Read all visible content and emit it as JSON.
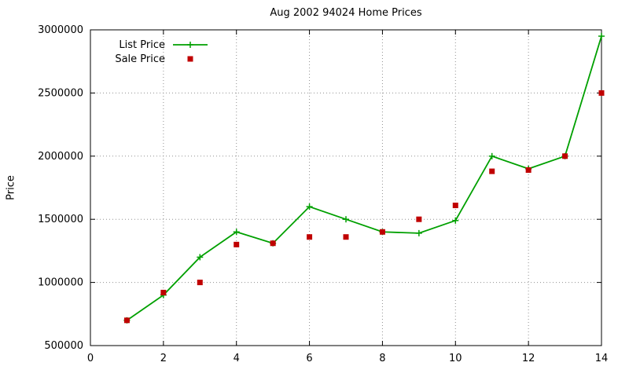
{
  "chart_data": {
    "type": "line",
    "title": "Aug 2002 94024 Home Prices",
    "xlabel": "",
    "ylabel": "Price",
    "xlim": [
      0,
      14
    ],
    "ylim": [
      500000,
      3000000
    ],
    "x_ticks": [
      0,
      2,
      4,
      6,
      8,
      10,
      12,
      14
    ],
    "y_ticks": [
      500000,
      1000000,
      1500000,
      2000000,
      2500000,
      3000000
    ],
    "grid": true,
    "legend_position": "top-left-inside",
    "x": [
      1,
      2,
      3,
      4,
      5,
      6,
      7,
      8,
      9,
      10,
      11,
      12,
      13,
      14
    ],
    "series": [
      {
        "name": "List Price",
        "style": "line-with-markers",
        "marker": "plus",
        "color": "#00a000",
        "values": [
          700000,
          900000,
          1200000,
          1400000,
          1310000,
          1600000,
          1500000,
          1400000,
          1390000,
          1490000,
          2000000,
          1900000,
          2000000,
          2950000
        ]
      },
      {
        "name": "Sale Price",
        "style": "points",
        "marker": "filled-square",
        "color": "#c00000",
        "values": [
          700000,
          920000,
          1000000,
          1300000,
          1310000,
          1360000,
          1360000,
          1400000,
          1500000,
          1610000,
          1880000,
          1890000,
          2000000,
          2500000
        ]
      }
    ],
    "grid_color": "#909090",
    "axis_color": "#000000"
  }
}
